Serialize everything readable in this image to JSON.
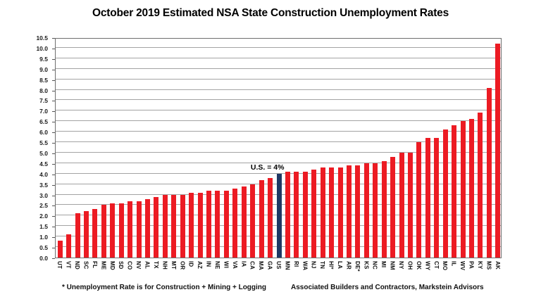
{
  "title": "October 2019 Estimated NSA State Construction Unemployment Rates",
  "annotation_label": "U.S. = 4%",
  "footnote": "* Unemployment Rate is for Construction + Mining + Logging",
  "source": "Associated Builders and Contractors, Markstein Advisors",
  "colors": {
    "bar": "#EC1B23",
    "highlight_bar": "#1F3864",
    "gridline": "#A3A3A3",
    "frame": "#6E6E6E",
    "text": "#000000",
    "background": "#FFFFFF"
  },
  "chart_data": {
    "type": "bar",
    "title": "October 2019 Estimated NSA State Construction Unemployment Rates",
    "xlabel": "",
    "ylabel": "",
    "ylim": [
      0,
      10.5
    ],
    "ytick_step": 0.5,
    "yticks": [
      "0.0",
      "0.5",
      "1.0",
      "1.5",
      "2.0",
      "2.5",
      "3.0",
      "3.5",
      "4.0",
      "4.5",
      "5.0",
      "5.5",
      "6.0",
      "6.5",
      "7.0",
      "7.5",
      "8.0",
      "8.5",
      "9.0",
      "9.5",
      "10.0",
      "10.5"
    ],
    "grid": true,
    "legend": "none",
    "highlight_category": "US",
    "annotation": {
      "text": "U.S. = 4%",
      "target_category": "US"
    },
    "categories": [
      "UT",
      "VT",
      "ND",
      "SC",
      "FL",
      "ME",
      "MD",
      "SD",
      "CO",
      "NV",
      "AL",
      "TX",
      "NH",
      "MT",
      "OR",
      "ID",
      "AZ",
      "IN",
      "NE",
      "WI",
      "VA",
      "IA",
      "CA",
      "MA",
      "GA",
      "US",
      "MN",
      "RI",
      "WA",
      "NJ",
      "TN",
      "HI*",
      "LA",
      "AR",
      "DE*",
      "KS",
      "NC",
      "MI",
      "NM",
      "NY",
      "OH",
      "OK",
      "WY",
      "CT",
      "MO",
      "IL",
      "WV",
      "PA",
      "KY",
      "MS",
      "AK"
    ],
    "values": [
      0.8,
      1.1,
      2.1,
      2.2,
      2.3,
      2.5,
      2.6,
      2.6,
      2.7,
      2.7,
      2.8,
      2.9,
      3.0,
      3.0,
      3.0,
      3.1,
      3.1,
      3.2,
      3.2,
      3.2,
      3.3,
      3.4,
      3.5,
      3.7,
      3.8,
      4.0,
      4.1,
      4.1,
      4.1,
      4.2,
      4.3,
      4.3,
      4.3,
      4.4,
      4.4,
      4.5,
      4.5,
      4.6,
      4.8,
      5.0,
      5.0,
      5.5,
      5.7,
      5.7,
      6.1,
      6.3,
      6.5,
      6.6,
      6.9,
      8.1,
      10.2
    ]
  }
}
